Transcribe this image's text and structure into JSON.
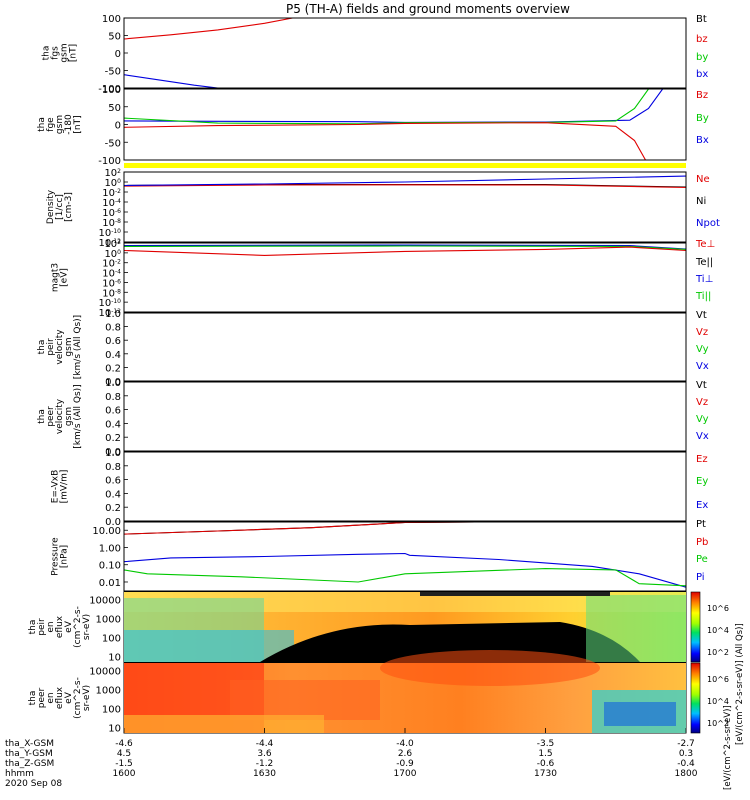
{
  "title": "P5 (TH-A) fields and ground moments overview",
  "colors": {
    "black": "#000000",
    "red": "#e00000",
    "green": "#00c800",
    "blue": "#0000e0",
    "yellow": "#ffff00"
  },
  "time_axis": {
    "rows": [
      {
        "label": "tha_X-GSM",
        "values": [
          "-4.6",
          "-4.4",
          "-4.0",
          "-3.5",
          "-2.7"
        ]
      },
      {
        "label": "tha_Y-GSM",
        "values": [
          "4.5",
          "3.6",
          "2.6",
          "1.5",
          "0.3"
        ]
      },
      {
        "label": "tha_Z-GSM",
        "values": [
          "-1.5",
          "-1.2",
          "-0.9",
          "-0.6",
          "-0.4"
        ]
      },
      {
        "label": "hhmm",
        "values": [
          "1600",
          "1630",
          "1700",
          "1730",
          "1800"
        ]
      }
    ],
    "date": "2020 Sep 08"
  },
  "colorbars": {
    "ions": {
      "ticks": [
        "10^6",
        "10^4",
        "10^2"
      ],
      "label": "[eV/(cm^2-s-sr-eV)] (All Qs)]"
    },
    "electrons": {
      "ticks": [
        "10^6",
        "10^4",
        "10^2"
      ],
      "label": "[eV/(cm^2-s-sr-eV)]"
    }
  },
  "chart_data": [
    {
      "type": "line",
      "name": "fgs",
      "ylabel": [
        "tha",
        "fgs",
        "gsm",
        "[nT]"
      ],
      "ylim": [
        -100,
        100
      ],
      "ticks": [
        "100",
        "50",
        "0",
        "-50",
        "-100"
      ],
      "legend": [
        {
          "name": "Bt",
          "color": "#000000"
        },
        {
          "name": "bz",
          "color": "#e00000"
        },
        {
          "name": "by",
          "color": "#00c800"
        },
        {
          "name": "bx",
          "color": "#0000e0"
        }
      ],
      "series": [
        {
          "name": "bz",
          "x": [
            1600,
            1610,
            1620,
            1630,
            1636
          ],
          "y": [
            40,
            52,
            66,
            85,
            100
          ]
        },
        {
          "name": "bx",
          "x": [
            1600,
            1610,
            1615,
            1620
          ],
          "y": [
            -62,
            -82,
            -92,
            -100
          ]
        }
      ]
    },
    {
      "type": "line",
      "name": "fge",
      "ylabel": [
        "tha",
        "fge",
        "gsm",
        "-180",
        "[nT]"
      ],
      "ylim": [
        -100,
        100
      ],
      "ticks": [
        "100",
        "50",
        "0",
        "-50",
        "-100"
      ],
      "legend": [
        {
          "name": "Bz",
          "color": "#e00000"
        },
        {
          "name": "By",
          "color": "#00c800"
        },
        {
          "name": "Bx",
          "color": "#0000e0"
        }
      ],
      "series": [
        {
          "name": "Bx",
          "x": [
            1600,
            1620,
            1650,
            1700,
            1730,
            1748,
            1752,
            1755
          ],
          "y": [
            10,
            9,
            8,
            6,
            7,
            12,
            45,
            100
          ]
        },
        {
          "name": "By",
          "x": [
            1600,
            1620,
            1650,
            1700,
            1730,
            1745,
            1749,
            1752
          ],
          "y": [
            18,
            4,
            2,
            5,
            6,
            10,
            45,
            100
          ]
        },
        {
          "name": "Bz",
          "x": [
            1600,
            1620,
            1650,
            1700,
            1730,
            1745,
            1749,
            1752
          ],
          "y": [
            -8,
            -3,
            0,
            3,
            5,
            -5,
            -45,
            -115
          ]
        }
      ]
    },
    {
      "type": "line",
      "name": "density",
      "ylabel": [
        "Density",
        "[1/cc]",
        "[cm-3]"
      ],
      "ylim": [
        1e-12,
        100
      ],
      "log": true,
      "ticks": [
        "10^2",
        "10^0",
        "10^-2",
        "10^-4",
        "10^-6",
        "10^-8",
        "10^-10",
        "10^-12"
      ],
      "legend": [
        {
          "name": "Ne",
          "color": "#e00000"
        },
        {
          "name": "Ni",
          "color": "#000000"
        },
        {
          "name": "Npot",
          "color": "#0000e0"
        }
      ],
      "series": [
        {
          "name": "Ni",
          "x": [
            1600,
            1630,
            1700,
            1730,
            1800
          ],
          "y": [
            0.2,
            0.3,
            0.3,
            0.3,
            0.1
          ]
        },
        {
          "name": "Ne",
          "x": [
            1600,
            1630,
            1700,
            1730,
            1800
          ],
          "y": [
            0.15,
            0.25,
            0.28,
            0.25,
            0.08
          ]
        },
        {
          "name": "Npot",
          "x": [
            1600,
            1630,
            1700,
            1730,
            1800
          ],
          "y": [
            0.2,
            0.4,
            1.0,
            4,
            15
          ]
        }
      ]
    },
    {
      "type": "line",
      "name": "temperature",
      "ylabel": [
        "magt3",
        "[eV]"
      ],
      "ylim": [
        1e-12,
        100
      ],
      "log": true,
      "ticks": [
        "10^2",
        "10^0",
        "10^-2",
        "10^-4",
        "10^-6",
        "10^-8",
        "10^-10",
        "10^-12"
      ],
      "legend": [
        {
          "name": "Te⊥",
          "color": "#e00000"
        },
        {
          "name": "Te||",
          "color": "#000000"
        },
        {
          "name": "Ti⊥",
          "color": "#0000e0"
        },
        {
          "name": "Ti||",
          "color": "#00c800"
        }
      ],
      "series": [
        {
          "name": "Ti⊥",
          "x": [
            1600,
            1700,
            1748,
            1800
          ],
          "y": [
            30,
            40,
            30,
            6
          ]
        },
        {
          "name": "Ti||",
          "x": [
            1600,
            1700,
            1748,
            1800
          ],
          "y": [
            20,
            25,
            20,
            5
          ]
        },
        {
          "name": "Te⊥",
          "x": [
            1600,
            1615,
            1630,
            1700,
            1730,
            1748,
            1800
          ],
          "y": [
            3,
            1,
            0.3,
            2,
            5,
            15,
            3
          ]
        },
        {
          "name": "Te||",
          "x": [
            1600,
            1800
          ],
          "y": [
            150,
            150
          ]
        }
      ]
    },
    {
      "type": "line",
      "name": "peir-velocity",
      "ylabel": [
        "tha",
        "peir",
        "velocity",
        "gsm",
        "[km/s (All Qs)]"
      ],
      "ylim": [
        0,
        1
      ],
      "ticks": [
        "1.0",
        "0.8",
        "0.6",
        "0.4",
        "0.2",
        "0.0"
      ],
      "legend": [
        {
          "name": "Vt",
          "color": "#000000"
        },
        {
          "name": "Vz",
          "color": "#e00000"
        },
        {
          "name": "Vy",
          "color": "#00c800"
        },
        {
          "name": "Vx",
          "color": "#0000e0"
        }
      ],
      "series": []
    },
    {
      "type": "line",
      "name": "peer-velocity",
      "ylabel": [
        "tha",
        "peer",
        "velocity",
        "gsm",
        "[km/s (All Qs)]"
      ],
      "ylim": [
        0,
        1
      ],
      "ticks": [
        "1.0",
        "0.8",
        "0.6",
        "0.4",
        "0.2",
        "0.0"
      ],
      "legend": [
        {
          "name": "Vt",
          "color": "#000000"
        },
        {
          "name": "Vz",
          "color": "#e00000"
        },
        {
          "name": "Vy",
          "color": "#00c800"
        },
        {
          "name": "Vx",
          "color": "#0000e0"
        }
      ],
      "series": []
    },
    {
      "type": "line",
      "name": "efield",
      "ylabel": [
        "E=-VxB",
        "[mV/m]"
      ],
      "ylim": [
        0,
        1
      ],
      "ticks": [
        "1.0",
        "0.8",
        "0.6",
        "0.4",
        "0.2",
        "0.0"
      ],
      "legend": [
        {
          "name": "Ez",
          "color": "#e00000"
        },
        {
          "name": "Ey",
          "color": "#00c800"
        },
        {
          "name": "Ex",
          "color": "#0000e0"
        }
      ],
      "series": []
    },
    {
      "type": "line",
      "name": "pressure",
      "ylabel": [
        "Pressure",
        "[nPa]"
      ],
      "ylim": [
        0.003,
        30
      ],
      "log": true,
      "ticks": [
        "10.00",
        "1.00",
        "0.10",
        "0.01"
      ],
      "tick_values": [
        10,
        1,
        0.1,
        0.01
      ],
      "legend": [
        {
          "name": "Pt",
          "color": "#000000"
        },
        {
          "name": "Pb",
          "color": "#e00000"
        },
        {
          "name": "Pe",
          "color": "#00c800"
        },
        {
          "name": "Pi",
          "color": "#0000e0"
        }
      ],
      "series": [
        {
          "name": "Pt",
          "x": [
            1600,
            1620,
            1640,
            1700,
            1715
          ],
          "y": [
            6,
            9,
            14,
            28,
            30
          ]
        },
        {
          "name": "Pb",
          "x": [
            1600,
            1620,
            1640,
            1700,
            1715
          ],
          "y": [
            6,
            9,
            14,
            28,
            30
          ]
        },
        {
          "name": "Pi",
          "x": [
            1600,
            1610,
            1630,
            1650,
            1700,
            1701,
            1720,
            1740,
            1750,
            1800
          ],
          "y": [
            0.15,
            0.25,
            0.3,
            0.4,
            0.45,
            0.35,
            0.2,
            0.08,
            0.03,
            0.005
          ]
        },
        {
          "name": "Pe",
          "x": [
            1600,
            1605,
            1625,
            1650,
            1700,
            1730,
            1745,
            1750,
            1800
          ],
          "y": [
            0.05,
            0.03,
            0.02,
            0.01,
            0.03,
            0.06,
            0.05,
            0.008,
            0.006
          ]
        }
      ]
    },
    {
      "type": "heatmap",
      "name": "peir-eflux",
      "ylabel": [
        "tha",
        "peir",
        "en",
        "eflux",
        "eV",
        "(cm^2-s-",
        "sr-eV)"
      ],
      "ylim": [
        5,
        25000
      ],
      "log": true,
      "ticks": [
        "10000",
        "1000",
        "100",
        "10"
      ],
      "tick_values": [
        10000,
        1000,
        100,
        10
      ]
    },
    {
      "type": "heatmap",
      "name": "peer-eflux",
      "ylabel": [
        "tha",
        "peer",
        "en",
        "eflux",
        "eV",
        "(cm^2-s-",
        "sr-eV)"
      ],
      "ylim": [
        5,
        25000
      ],
      "log": true,
      "ticks": [
        "10000",
        "1000",
        "100",
        "10"
      ],
      "tick_values": [
        10000,
        1000,
        100,
        10
      ]
    }
  ]
}
